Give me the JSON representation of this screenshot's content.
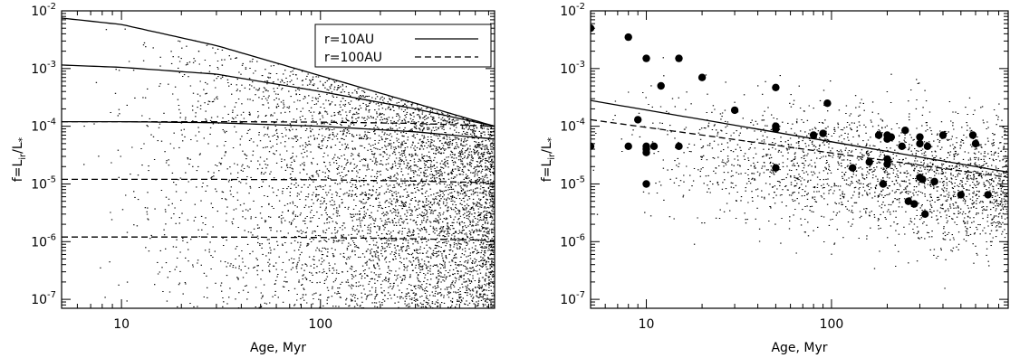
{
  "chart_data": [
    {
      "type": "scatter",
      "xlabel": "Age, Myr",
      "ylabel_main": "f=L",
      "ylabel_sub": "ir",
      "ylabel_mid": "/L",
      "ylabel_star": "*",
      "x_scale": "log",
      "y_scale": "log",
      "xlim": [
        5,
        750
      ],
      "ylim": [
        7e-08,
        0.01
      ],
      "x_ticks": [
        {
          "value": 10,
          "label": "10"
        },
        {
          "value": 100,
          "label": "100"
        }
      ],
      "y_ticks": [
        {
          "value": 1e-07,
          "base": "10",
          "exp": "-7"
        },
        {
          "value": 1e-06,
          "base": "10",
          "exp": "-6"
        },
        {
          "value": 1e-05,
          "base": "10",
          "exp": "-5"
        },
        {
          "value": 0.0001,
          "base": "10",
          "exp": "-4"
        },
        {
          "value": 0.001,
          "base": "10",
          "exp": "-3"
        },
        {
          "value": 0.01,
          "base": "10",
          "exp": "-2"
        }
      ],
      "legend": {
        "placement": "top-right",
        "entries": [
          {
            "label": "r=10AU",
            "style": "solid"
          },
          {
            "label": "r=100AU",
            "style": "dashed"
          }
        ]
      },
      "series": [
        {
          "style": "solid",
          "x": [
            5,
            10,
            30,
            100,
            300,
            750
          ],
          "y": [
            0.0075,
            0.0058,
            0.0025,
            0.00075,
            0.00025,
            0.0001
          ]
        },
        {
          "style": "solid",
          "x": [
            5,
            10,
            30,
            100,
            300,
            750
          ],
          "y": [
            0.00115,
            0.00105,
            0.0008,
            0.0004,
            0.0002,
            0.0001
          ]
        },
        {
          "style": "solid",
          "x": [
            5,
            10,
            30,
            100,
            300,
            750
          ],
          "y": [
            0.00012,
            0.00012,
            0.000115,
            0.0001,
            8e-05,
            6e-05
          ]
        },
        {
          "style": "dashed",
          "x": [
            5,
            30,
            100,
            300,
            750
          ],
          "y": [
            0.00012,
            0.00012,
            0.000118,
            0.000112,
            0.0001
          ]
        },
        {
          "style": "dashed",
          "x": [
            5,
            30,
            100,
            300,
            750
          ],
          "y": [
            1.2e-05,
            1.2e-05,
            1.18e-05,
            1.12e-05,
            1.05e-05
          ]
        },
        {
          "style": "dashed",
          "x": [
            5,
            30,
            100,
            300,
            750
          ],
          "y": [
            1.2e-06,
            1.2e-06,
            1.18e-06,
            1.12e-06,
            1.05e-06
          ]
        }
      ],
      "scatter_density": "dense at old ages, sparse at young ages; upper bound of points follows r=10AU curve"
    },
    {
      "type": "scatter",
      "xlabel": "Age, Myr",
      "ylabel_main": "f=L",
      "ylabel_sub": "ir",
      "ylabel_mid": "/L",
      "ylabel_star": "*",
      "x_scale": "log",
      "y_scale": "log",
      "xlim": [
        5,
        900
      ],
      "ylim": [
        7e-08,
        0.01
      ],
      "x_ticks": [
        {
          "value": 10,
          "label": "10"
        },
        {
          "value": 100,
          "label": "100"
        }
      ],
      "y_ticks": [
        {
          "value": 1e-07,
          "base": "10",
          "exp": "-7"
        },
        {
          "value": 1e-06,
          "base": "10",
          "exp": "-6"
        },
        {
          "value": 1e-05,
          "base": "10",
          "exp": "-5"
        },
        {
          "value": 0.0001,
          "base": "10",
          "exp": "-4"
        },
        {
          "value": 0.001,
          "base": "10",
          "exp": "-3"
        },
        {
          "value": 0.01,
          "base": "10",
          "exp": "-2"
        }
      ],
      "series": [
        {
          "style": "solid",
          "x": [
            5,
            900
          ],
          "y": [
            0.00028,
            1.6e-05
          ]
        },
        {
          "style": "dashed",
          "x": [
            5,
            900
          ],
          "y": [
            0.00013,
            1.3e-05
          ]
        }
      ],
      "observed_points": {
        "x": [
          5,
          5,
          8,
          8,
          9,
          10,
          10,
          10,
          10,
          10,
          11,
          12,
          15,
          15,
          20,
          30,
          50,
          50,
          50,
          50,
          80,
          90,
          95,
          130,
          160,
          180,
          190,
          200,
          200,
          200,
          200,
          210,
          240,
          250,
          260,
          280,
          300,
          300,
          300,
          310,
          320,
          330,
          360,
          400,
          500,
          580,
          600,
          700
        ],
        "y": [
          0.005,
          4.5e-05,
          0.0035,
          4.5e-05,
          0.00013,
          0.0015,
          4.5e-05,
          4e-05,
          3.5e-05,
          1e-05,
          4.5e-05,
          0.0005,
          0.0015,
          4.5e-05,
          0.0007,
          0.00019,
          0.00047,
          0.0001,
          9e-05,
          1.9e-05,
          7e-05,
          7.5e-05,
          0.00025,
          1.9e-05,
          2.4e-05,
          7e-05,
          1e-05,
          7e-05,
          6e-05,
          2.7e-05,
          2.2e-05,
          6.5e-05,
          4.5e-05,
          8.5e-05,
          5e-06,
          4.5e-06,
          6.5e-05,
          5e-05,
          1.3e-05,
          1.2e-05,
          3e-06,
          4.5e-05,
          1.1e-05,
          7e-05,
          6.5e-06,
          7e-05,
          5e-05,
          6.5e-06
        ]
      },
      "scatter_density": "moderate density, spread about the fitted lines"
    }
  ]
}
